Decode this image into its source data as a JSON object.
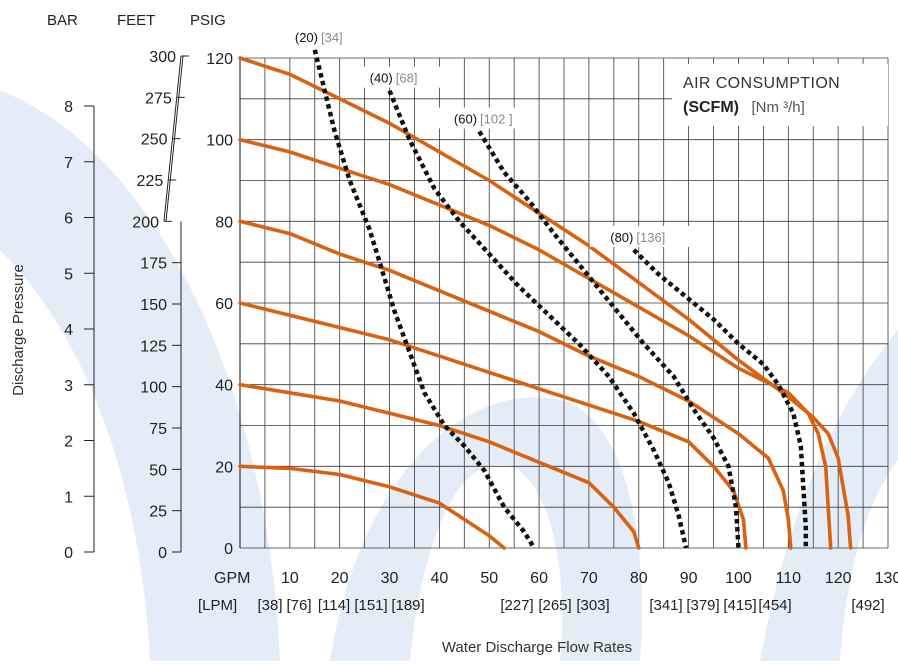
{
  "chart_data": {
    "type": "line",
    "unit_headers": [
      "BAR",
      "FEET",
      "PSIG"
    ],
    "y_axis_label": "Discharge Pressure",
    "x_axis_label": "Water Discharge Flow Rates",
    "legend": {
      "line1": "AIR CONSUMPTION",
      "line2_bold": "(SCFM)",
      "line2_unit": "[Nm ³/h]"
    },
    "psig_ticks": [
      "0",
      "20",
      "40",
      "60",
      "80",
      "100",
      "120"
    ],
    "feet_ticks": [
      "0",
      "25",
      "50",
      "75",
      "100",
      "125",
      "150",
      "175",
      "200",
      "225",
      "250",
      "275",
      "300"
    ],
    "bar_ticks": [
      "0",
      "1",
      "2",
      "3",
      "4",
      "5",
      "6",
      "7",
      "8"
    ],
    "gpm_label": "GPM",
    "gpm_ticks": [
      "10",
      "20",
      "30",
      "40",
      "50",
      "60",
      "70",
      "80",
      "90",
      "100",
      "110",
      "120",
      "130"
    ],
    "lpm_label": "[LPM]",
    "lpm_ticks": [
      "[38]",
      "[76]",
      "[114]",
      "[151]",
      "[189]",
      "[227]",
      "[265]",
      "[303]",
      "[341]",
      "[379]",
      "[415]",
      "[454]",
      "[492]"
    ],
    "xlim": [
      0,
      130
    ],
    "ylim": [
      0,
      120
    ],
    "grid": true,
    "performance_curves": [
      {
        "psig": 120,
        "points": [
          [
            0,
            120
          ],
          [
            10,
            116
          ],
          [
            20,
            110
          ],
          [
            30,
            104
          ],
          [
            40,
            97
          ],
          [
            50,
            90
          ],
          [
            60,
            82
          ],
          [
            70,
            74
          ],
          [
            80,
            65
          ],
          [
            90,
            56
          ],
          [
            100,
            46
          ],
          [
            110,
            37
          ],
          [
            115,
            32
          ],
          [
            118,
            28
          ],
          [
            120,
            22
          ],
          [
            121,
            15
          ],
          [
            122,
            8
          ],
          [
            122.5,
            0
          ]
        ]
      },
      {
        "psig": 100,
        "points": [
          [
            0,
            100
          ],
          [
            10,
            97
          ],
          [
            20,
            93
          ],
          [
            30,
            89
          ],
          [
            40,
            84
          ],
          [
            50,
            79
          ],
          [
            60,
            73
          ],
          [
            70,
            66
          ],
          [
            80,
            59
          ],
          [
            90,
            52
          ],
          [
            100,
            44
          ],
          [
            110,
            38
          ],
          [
            114,
            33
          ],
          [
            116,
            28
          ],
          [
            117.5,
            20
          ],
          [
            118,
            10
          ],
          [
            118.5,
            0
          ]
        ]
      },
      {
        "psig": 80,
        "points": [
          [
            0,
            80
          ],
          [
            10,
            77
          ],
          [
            20,
            72
          ],
          [
            30,
            68
          ],
          [
            40,
            63
          ],
          [
            50,
            58
          ],
          [
            60,
            53
          ],
          [
            70,
            47
          ],
          [
            80,
            42
          ],
          [
            90,
            36
          ],
          [
            100,
            28
          ],
          [
            106,
            22
          ],
          [
            109,
            14
          ],
          [
            110,
            7
          ],
          [
            110.5,
            0
          ]
        ]
      },
      {
        "psig": 60,
        "points": [
          [
            0,
            60
          ],
          [
            10,
            57
          ],
          [
            20,
            54
          ],
          [
            30,
            51
          ],
          [
            40,
            47
          ],
          [
            50,
            43
          ],
          [
            60,
            39
          ],
          [
            70,
            35
          ],
          [
            80,
            31
          ],
          [
            90,
            26
          ],
          [
            95,
            20
          ],
          [
            99,
            14
          ],
          [
            101,
            7
          ],
          [
            101.5,
            0
          ]
        ]
      },
      {
        "psig": 40,
        "points": [
          [
            0,
            40
          ],
          [
            10,
            38
          ],
          [
            20,
            36
          ],
          [
            30,
            33
          ],
          [
            40,
            30
          ],
          [
            50,
            26
          ],
          [
            60,
            21
          ],
          [
            70,
            16
          ],
          [
            75,
            10
          ],
          [
            79,
            4
          ],
          [
            80,
            0
          ]
        ]
      },
      {
        "psig": 20,
        "points": [
          [
            0,
            20
          ],
          [
            10,
            19.5
          ],
          [
            20,
            18
          ],
          [
            30,
            15
          ],
          [
            40,
            11
          ],
          [
            45,
            7
          ],
          [
            50,
            3
          ],
          [
            53,
            0
          ]
        ]
      }
    ],
    "air_consumption_curves": [
      {
        "label": "(20)",
        "label_nm": "[34]",
        "points": [
          [
            15,
            122
          ],
          [
            17,
            112
          ],
          [
            19,
            102
          ],
          [
            22,
            90
          ],
          [
            26,
            78
          ],
          [
            29,
            66
          ],
          [
            31,
            58
          ],
          [
            34,
            48
          ],
          [
            37,
            38
          ],
          [
            41,
            30
          ],
          [
            45,
            25
          ],
          [
            49,
            19
          ],
          [
            53,
            10
          ],
          [
            57,
            4
          ],
          [
            59,
            0
          ]
        ]
      },
      {
        "label": "(40)",
        "label_nm": "[68]",
        "points": [
          [
            30,
            112
          ],
          [
            34,
            100
          ],
          [
            39,
            88
          ],
          [
            44,
            80
          ],
          [
            50,
            72
          ],
          [
            56,
            64
          ],
          [
            62,
            57
          ],
          [
            68,
            50
          ],
          [
            74,
            42
          ],
          [
            79,
            33
          ],
          [
            83,
            24
          ],
          [
            86,
            16
          ],
          [
            88,
            8
          ],
          [
            89.5,
            0
          ]
        ]
      },
      {
        "label": "(60)",
        "label_nm": "[102 ]",
        "points": [
          [
            48,
            102
          ],
          [
            53,
            92
          ],
          [
            58,
            85
          ],
          [
            63,
            77
          ],
          [
            69,
            68
          ],
          [
            75,
            59
          ],
          [
            81,
            50
          ],
          [
            87,
            42
          ],
          [
            91,
            34
          ],
          [
            95,
            27
          ],
          [
            98,
            20
          ],
          [
            99.5,
            10
          ],
          [
            100,
            0
          ]
        ]
      },
      {
        "label": "(80)",
        "label_nm": "[136]",
        "points": [
          [
            79,
            73
          ],
          [
            84,
            67
          ],
          [
            90,
            61
          ],
          [
            95,
            56
          ],
          [
            100,
            50
          ],
          [
            105,
            45
          ],
          [
            108,
            40
          ],
          [
            111,
            33
          ],
          [
            112.5,
            25
          ],
          [
            113,
            15
          ],
          [
            113.5,
            5
          ],
          [
            113.5,
            0
          ]
        ]
      }
    ],
    "colors": {
      "performance": "#d8620f",
      "air": "#111111",
      "grid": "#3a3a3a",
      "watermark": "#e4edf7"
    }
  }
}
